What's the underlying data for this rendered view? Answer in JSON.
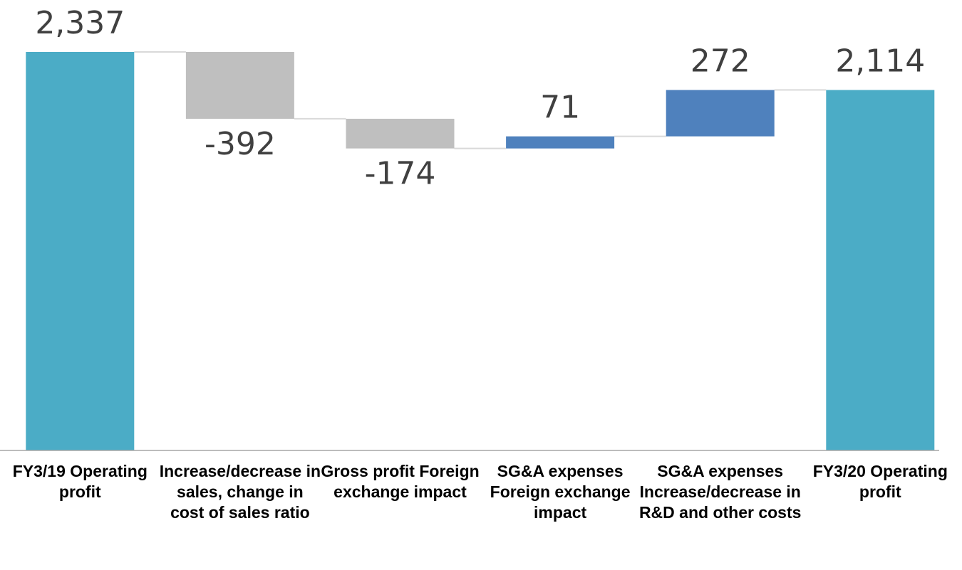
{
  "chart_data": {
    "type": "waterfall",
    "categories": [
      "FY3/19 Operating profit",
      "Increase/decrease in sales, change in cost of sales ratio",
      "Gross profit Foreign exchange impact",
      "SG&A expenses Foreign exchange impact",
      "SG&A expenses Increase/decrease in R&D and other costs",
      "FY3/20 Operating profit"
    ],
    "values": [
      2337,
      -392,
      -174,
      71,
      272,
      2114
    ],
    "value_labels": [
      "2,337",
      "-392",
      "-174",
      "71",
      "272",
      "2,114"
    ],
    "measure": [
      "absolute",
      "relative",
      "relative",
      "relative",
      "relative",
      "total"
    ],
    "colors": {
      "total": "#4bacc6",
      "increase": "#4f81bd",
      "decrease": "#bfbfbf"
    }
  }
}
